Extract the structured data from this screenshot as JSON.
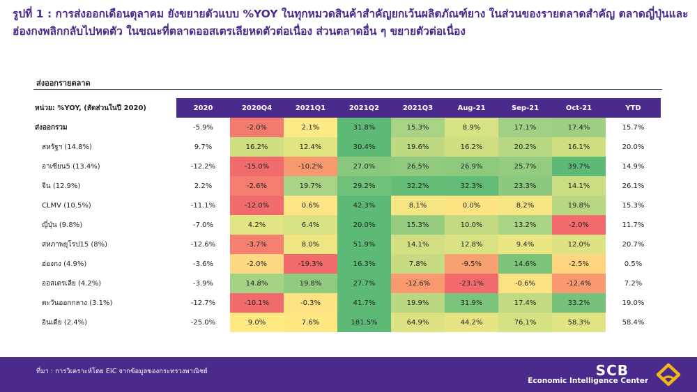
{
  "title": "รูปที่ 1 : การส่งออกเดือนตุลาคม ยังขยายตัวแบบ %YOY ในทุกหมวดสินค้าสำคัญยกเว้นผลิตภัณฑ์ยาง ในส่วนของรายตลาดสำคัญ ตลาดญี่ปุ่นและฮ่องกงพลิกกลับไปหดตัว ในขณะที่ตลาดออสเตรเลียหดตัวต่อเนื่อง ส่วนตลาดอื่น ๆ ขยายตัวต่อเนื่อง",
  "section_label": "ส่งออกรายตลาด",
  "table": {
    "unit_label": "หน่วย: %YOY, (สัดส่วนในปี 2020)",
    "columns": [
      "2020",
      "2020Q4",
      "2021Q1",
      "2021Q2",
      "2021Q3",
      "Aug-21",
      "Sep-21",
      "Oct-21",
      "YTD"
    ],
    "rows": [
      {
        "label": "ส่งออกรวม",
        "values": [
          "-5.9%",
          "-2.0%",
          "2.1%",
          "31.8%",
          "15.3%",
          "8.9%",
          "17.1%",
          "17.4%",
          "15.7%"
        ],
        "colors": [
          "#f27b70",
          "#fde986",
          "#5cba76",
          "#a8d385",
          "#d9e283",
          "#a2d084",
          "#a0cf84"
        ]
      },
      {
        "label": "สหรัฐฯ (14.8%)",
        "values": [
          "9.7%",
          "16.2%",
          "12.4%",
          "30.4%",
          "19.6%",
          "16.2%",
          "20.2%",
          "16.1%",
          "20.0%"
        ],
        "colors": [
          "#d0de82",
          "#e0e582",
          "#5cba76",
          "#bfd982",
          "#d0de82",
          "#b8d782",
          "#d0de82"
        ]
      },
      {
        "label": "อาเซียน5 (13.4%)",
        "values": [
          "-12.2%",
          "-15.0%",
          "-10.2%",
          "27.0%",
          "26.5%",
          "26.9%",
          "25.7%",
          "39.7%",
          "14.9%"
        ],
        "colors": [
          "#f26b6c",
          "#f7996f",
          "#8ac87d",
          "#8fca7e",
          "#8dc97d",
          "#93cb7f",
          "#5cba76"
        ]
      },
      {
        "label": "จีน (12.9%)",
        "values": [
          "2.2%",
          "-2.6%",
          "19.7%",
          "29.2%",
          "32.2%",
          "32.3%",
          "23.3%",
          "14.1%",
          "26.1%"
        ],
        "colors": [
          "#f27d70",
          "#a8d385",
          "#6ec07a",
          "#63bd77",
          "#62bc77",
          "#8bc87d",
          "#cadd83"
        ]
      },
      {
        "label": "CLMV (10.5%)",
        "values": [
          "-11.1%",
          "-12.0%",
          "0.6%",
          "42.3%",
          "8.1%",
          "0.0%",
          "8.2%",
          "19.8%",
          "15.3%"
        ],
        "colors": [
          "#f26b6c",
          "#fde484",
          "#5cba76",
          "#f6e583",
          "#fee383",
          "#f6e583",
          "#b9d782"
        ]
      },
      {
        "label": "ญี่ปุ่น (9.8%)",
        "values": [
          "-7.0%",
          "4.2%",
          "6.4%",
          "20.0%",
          "15.3%",
          "10.0%",
          "13.2%",
          "-2.0%",
          "11.7%"
        ],
        "colors": [
          "#e2e583",
          "#d9e283",
          "#5cba76",
          "#95cc7f",
          "#c3da82",
          "#a9d385",
          "#f36b6c"
        ]
      },
      {
        "label": "สหภาพยุโรป15 (8%)",
        "values": [
          "-12.6%",
          "-3.7%",
          "8.0%",
          "51.9%",
          "14.1%",
          "12.8%",
          "9.4%",
          "12.0%",
          "20.7%"
        ],
        "colors": [
          "#f5806f",
          "#f0e583",
          "#5cba76",
          "#d2df83",
          "#dae283",
          "#ebe583",
          "#ddE383"
        ]
      },
      {
        "label": "ฮ่องกง (4.9%)",
        "values": [
          "-3.6%",
          "-2.0%",
          "-19.3%",
          "16.3%",
          "7.8%",
          "-9.5%",
          "14.6%",
          "-2.5%",
          "0.5%"
        ],
        "colors": [
          "#fdd982",
          "#f26b6c",
          "#5cba76",
          "#c6db82",
          "#f8a170",
          "#7dc47b",
          "#fed67f"
        ]
      },
      {
        "label": "ออสเตรเลีย (4.2%)",
        "values": [
          "-3.9%",
          "14.8%",
          "19.8%",
          "27.7%",
          "-12.6%",
          "-23.1%",
          "-0.6%",
          "-12.4%",
          "7.2%"
        ],
        "colors": [
          "#a5d284",
          "#8fca7e",
          "#5cba76",
          "#f8996f",
          "#f26b6c",
          "#fde283",
          "#f8996f"
        ]
      },
      {
        "label": "ตะวันออกกลาง (3.1%)",
        "values": [
          "-12.7%",
          "-10.1%",
          "-0.3%",
          "41.7%",
          "19.9%",
          "31.9%",
          "17.4%",
          "33.2%",
          "19.0%"
        ],
        "colors": [
          "#f26b6c",
          "#fde283",
          "#5cba76",
          "#bad782",
          "#7bc47b",
          "#c2da82",
          "#76c27a"
        ]
      },
      {
        "label": "อินเดีย (2.4%)",
        "values": [
          "-25.0%",
          "9.0%",
          "7.6%",
          "181.5%",
          "64.9%",
          "44.2%",
          "76.1%",
          "58.3%",
          "58.4%"
        ],
        "colors": [
          "#fee983",
          "#fee783",
          "#5cba76",
          "#dde383",
          "#e7e583",
          "#d6e183",
          "#e0e482"
        ]
      }
    ]
  },
  "footer": {
    "source": "ที่มา : การวิเคราะห์โดย EIC จากข้อมูลของกระทรวงพาณิชย์",
    "brand": "SCB",
    "tagline": "Economic Intelligence Center",
    "bg_color": "#4a2a8a",
    "logo_color": "#f3b61a"
  }
}
